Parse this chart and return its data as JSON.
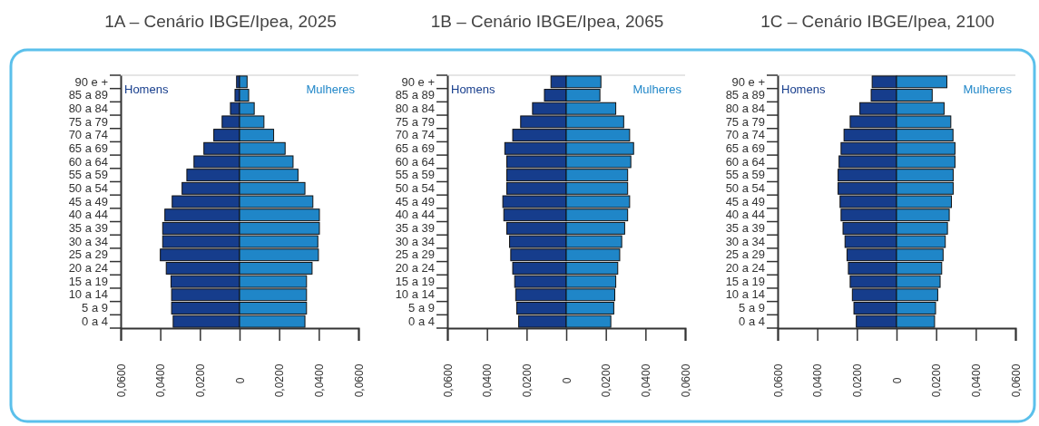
{
  "chart_data": [
    {
      "type": "bar",
      "orientation": "horizontal",
      "stacked": true,
      "title": "1A – Cenário IBGE/Ipea, 2025",
      "categories": [
        "90 e +",
        "85 a 89",
        "80 a 84",
        "75 a 79",
        "70 a 74",
        "65 a 69",
        "60 a 64",
        "55 a 59",
        "50 a 54",
        "45 a 49",
        "40 a 44",
        "35 a 39",
        "30 a 34",
        "25 a 29",
        "20 a 24",
        "15 a 19",
        "10 a 14",
        "5 a 9",
        "0 a 4"
      ],
      "series": [
        {
          "name": "Homens",
          "color": "#163d8c",
          "values": [
            -0.0015,
            -0.0023,
            -0.0046,
            -0.0088,
            -0.013,
            -0.018,
            -0.023,
            -0.0266,
            -0.029,
            -0.034,
            -0.0377,
            -0.0388,
            -0.0388,
            -0.04,
            -0.037,
            -0.0346,
            -0.0343,
            -0.0343,
            -0.0335
          ]
        },
        {
          "name": "Mulheres",
          "color": "#1f86c8",
          "values": [
            0.0038,
            0.0046,
            0.0074,
            0.0123,
            0.0172,
            0.023,
            0.027,
            0.0295,
            0.033,
            0.037,
            0.0403,
            0.0403,
            0.0395,
            0.0398,
            0.0366,
            0.0338,
            0.0338,
            0.0338,
            0.033
          ]
        }
      ],
      "xlim": [
        -0.06,
        0.06
      ],
      "xticks": [
        {
          "value": -0.06,
          "label": "0,0600"
        },
        {
          "value": -0.04,
          "label": "0,0400"
        },
        {
          "value": -0.02,
          "label": "0,0200"
        },
        {
          "value": 0,
          "label": "0"
        },
        {
          "value": 0.02,
          "label": "0,0200"
        },
        {
          "value": 0.04,
          "label": "0,0400"
        },
        {
          "value": 0.06,
          "label": "0,0600"
        }
      ],
      "grid": false
    },
    {
      "type": "bar",
      "orientation": "horizontal",
      "stacked": true,
      "title": "1B – Cenário IBGE/Ipea, 2065",
      "categories": [
        "90 e +",
        "85 a 89",
        "80 a 84",
        "75 a 79",
        "70 a 74",
        "65 a 69",
        "60 a 64",
        "55 a 59",
        "50 a 54",
        "45 a 49",
        "40 a 44",
        "35 a 39",
        "30 a 34",
        "25 a 29",
        "20 a 24",
        "15 a 19",
        "10 a 14",
        "5 a 9",
        "0 a 4"
      ],
      "series": [
        {
          "name": "Homens",
          "color": "#163d8c",
          "values": [
            -0.0077,
            -0.011,
            -0.017,
            -0.023,
            -0.027,
            -0.031,
            -0.03,
            -0.03,
            -0.03,
            -0.032,
            -0.0315,
            -0.03,
            -0.0286,
            -0.028,
            -0.027,
            -0.026,
            -0.0255,
            -0.025,
            -0.024
          ]
        },
        {
          "name": "Mulheres",
          "color": "#1f86c8",
          "values": [
            0.0175,
            0.017,
            0.025,
            0.029,
            0.032,
            0.034,
            0.0326,
            0.031,
            0.031,
            0.032,
            0.031,
            0.0295,
            0.028,
            0.027,
            0.026,
            0.025,
            0.0245,
            0.024,
            0.0225
          ]
        }
      ],
      "xlim": [
        -0.06,
        0.06
      ],
      "xticks": [
        {
          "value": -0.06,
          "label": "0,0600"
        },
        {
          "value": -0.04,
          "label": "0,0400"
        },
        {
          "value": -0.02,
          "label": "0,0200"
        },
        {
          "value": 0,
          "label": "0"
        },
        {
          "value": 0.02,
          "label": "0,0200"
        },
        {
          "value": 0.04,
          "label": "0,0400"
        },
        {
          "value": 0.06,
          "label": "0,0600"
        }
      ],
      "grid": false
    },
    {
      "type": "bar",
      "orientation": "horizontal",
      "stacked": true,
      "title": "1C – Cenário IBGE/Ipea, 2100",
      "categories": [
        "90 e +",
        "85 a 89",
        "80 a 84",
        "75 a 79",
        "70 a 74",
        "65 a 69",
        "60 a 64",
        "55 a 59",
        "50 a 54",
        "45 a 49",
        "40 a 44",
        "35 a 39",
        "30 a 34",
        "25 a 29",
        "20 a 24",
        "15 a 19",
        "10 a 14",
        "5 a 9",
        "0 a 4"
      ],
      "series": [
        {
          "name": "Homens",
          "color": "#163d8c",
          "values": [
            -0.0123,
            -0.0128,
            -0.0185,
            -0.0234,
            -0.0265,
            -0.028,
            -0.029,
            -0.0295,
            -0.0295,
            -0.0285,
            -0.028,
            -0.027,
            -0.026,
            -0.025,
            -0.0243,
            -0.0234,
            -0.0223,
            -0.0215,
            -0.0203
          ]
        },
        {
          "name": "Mulheres",
          "color": "#1f86c8",
          "values": [
            0.0254,
            0.018,
            0.024,
            0.0274,
            0.0285,
            0.0295,
            0.0295,
            0.0286,
            0.0286,
            0.0277,
            0.0266,
            0.0257,
            0.0246,
            0.0235,
            0.0228,
            0.022,
            0.0208,
            0.0197,
            0.0192
          ]
        }
      ],
      "xlim": [
        -0.06,
        0.06
      ],
      "xticks": [
        {
          "value": -0.06,
          "label": "0,0600"
        },
        {
          "value": -0.04,
          "label": "0,0400"
        },
        {
          "value": -0.02,
          "label": "0,0200"
        },
        {
          "value": 0,
          "label": "0"
        },
        {
          "value": 0.02,
          "label": "0,0200"
        },
        {
          "value": 0.04,
          "label": "0,0400"
        },
        {
          "value": 0.06,
          "label": "0,0600"
        }
      ],
      "grid": false
    }
  ]
}
